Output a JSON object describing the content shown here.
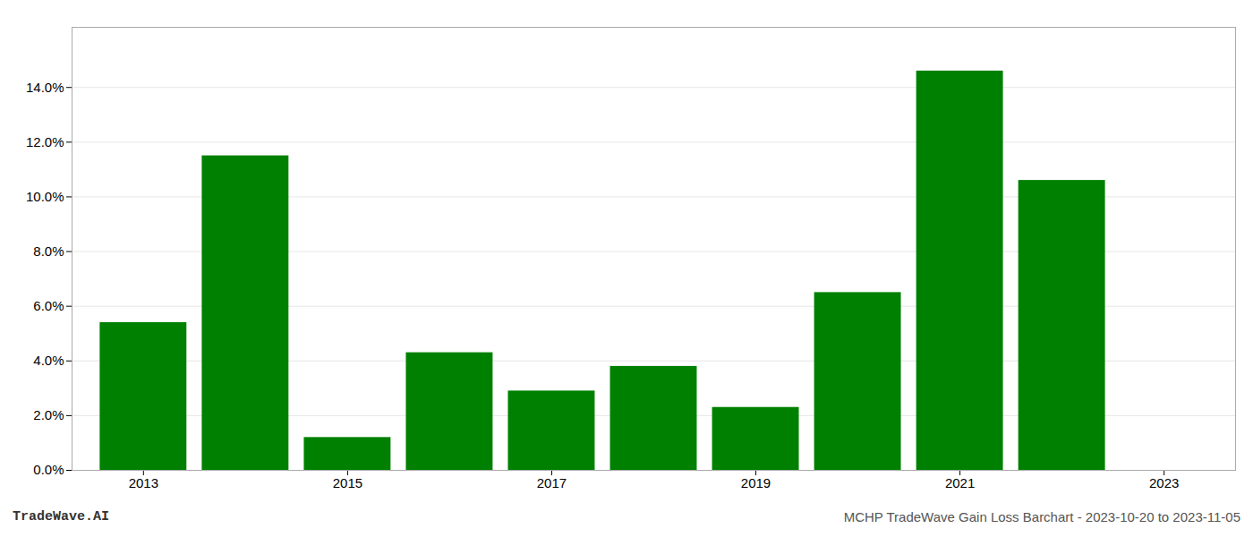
{
  "chart_data": {
    "type": "bar",
    "x": [
      2013,
      2014,
      2015,
      2016,
      2017,
      2018,
      2019,
      2020,
      2021,
      2022
    ],
    "values": [
      0.054,
      0.115,
      0.012,
      0.043,
      0.029,
      0.038,
      0.023,
      0.065,
      0.146,
      0.106
    ],
    "color": "#008000",
    "xlim": [
      2012.3,
      2023.7
    ],
    "xticks": [
      2013,
      2015,
      2017,
      2019,
      2021,
      2023
    ],
    "ylim": [
      0.0,
      0.162
    ],
    "yticks": [
      {
        "value": 0.0,
        "label": "0.0%"
      },
      {
        "value": 0.02,
        "label": "2.0%"
      },
      {
        "value": 0.04,
        "label": "4.0%"
      },
      {
        "value": 0.06,
        "label": "6.0%"
      },
      {
        "value": 0.08,
        "label": "8.0%"
      },
      {
        "value": 0.1,
        "label": "10.0%"
      },
      {
        "value": 0.12,
        "label": "12.0%"
      },
      {
        "value": 0.14,
        "label": "14.0%"
      }
    ],
    "grid": true,
    "annotations": [
      "TradeWave.AI",
      "MCHP TradeWave Gain Loss Barchart - 2023-10-20 to 2023-11-05"
    ]
  }
}
